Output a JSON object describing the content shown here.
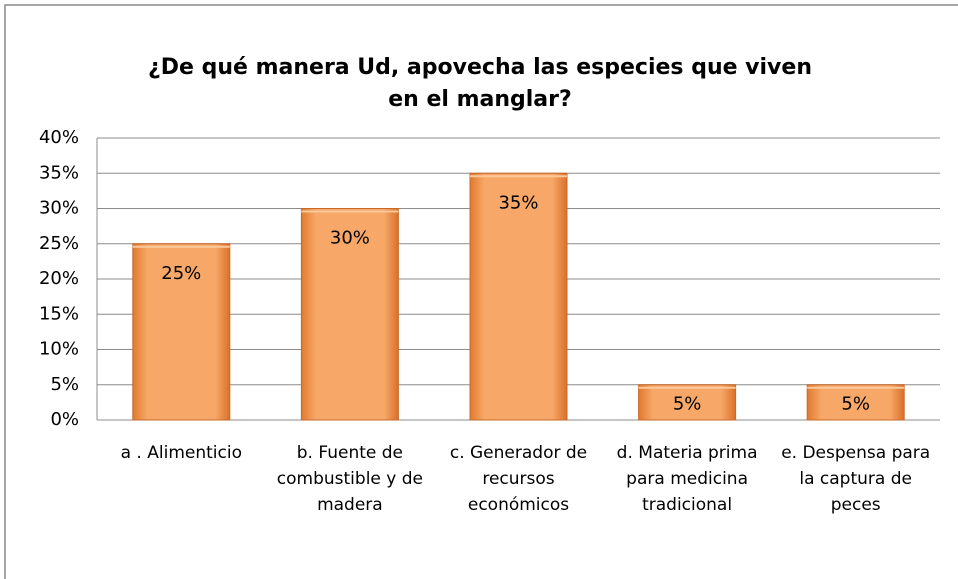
{
  "chart_data": {
    "type": "bar",
    "title": "¿De qué manera Ud, apovecha las especies que viven en el manglar?",
    "categories": [
      "a . Alimenticio",
      "b. Fuente de combustible y de madera",
      "c.  Generador de recursos económicos",
      "d. Materia prima para medicina tradicional",
      "e. Despensa para la captura de peces"
    ],
    "values": [
      25,
      30,
      35,
      5,
      5
    ],
    "value_labels": [
      "25%",
      "30%",
      "35%",
      "5%",
      "5%"
    ],
    "color": "#f4a460",
    "ylim": [
      0,
      40
    ],
    "yticks": [
      {
        "value": 0,
        "label": "0%"
      },
      {
        "value": 5,
        "label": "5%"
      },
      {
        "value": 10,
        "label": "10%"
      },
      {
        "value": 15,
        "label": "15%"
      },
      {
        "value": 20,
        "label": "20%"
      },
      {
        "value": 25,
        "label": "25%"
      },
      {
        "value": 30,
        "label": "30%"
      },
      {
        "value": 35,
        "label": "35%"
      },
      {
        "value": 40,
        "label": "40%"
      }
    ],
    "grid": true
  }
}
